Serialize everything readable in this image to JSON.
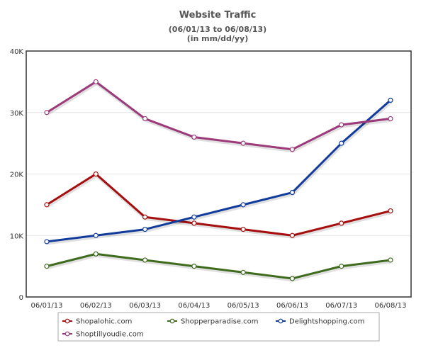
{
  "chart_data": {
    "type": "line",
    "title": "Website Traffic",
    "subtitle_lines": [
      "(06/01/13 to 06/08/13)",
      "(in mm/dd/yy)"
    ],
    "xlabel": "",
    "ylabel": "",
    "categories": [
      "06/01/13",
      "06/02/13",
      "06/03/13",
      "06/04/13",
      "06/05/13",
      "06/06/13",
      "06/07/13",
      "06/08/13"
    ],
    "ylim": [
      0,
      40000
    ],
    "y_ticks": [
      0,
      10000,
      20000,
      30000,
      40000
    ],
    "y_tick_labels": [
      "0",
      "10K",
      "20K",
      "30K",
      "40K"
    ],
    "grid": true,
    "legend_position": "bottom",
    "series": [
      {
        "name": "Shopalohic.com",
        "color": "#a50f0f",
        "values": [
          15000,
          20000,
          13000,
          12000,
          11000,
          10000,
          12000,
          14000
        ]
      },
      {
        "name": "Shopperparadise.com",
        "color": "#3f6b1e",
        "values": [
          5000,
          7000,
          6000,
          5000,
          4000,
          3000,
          5000,
          6000
        ]
      },
      {
        "name": "Delightshopping.com",
        "color": "#123c9c",
        "values": [
          9000,
          10000,
          11000,
          13000,
          15000,
          17000,
          25000,
          32000
        ]
      },
      {
        "name": "Shoptillyoudie.com",
        "color": "#9c3a7a",
        "values": [
          30000,
          35000,
          29000,
          26000,
          25000,
          24000,
          28000,
          29000
        ]
      }
    ]
  }
}
